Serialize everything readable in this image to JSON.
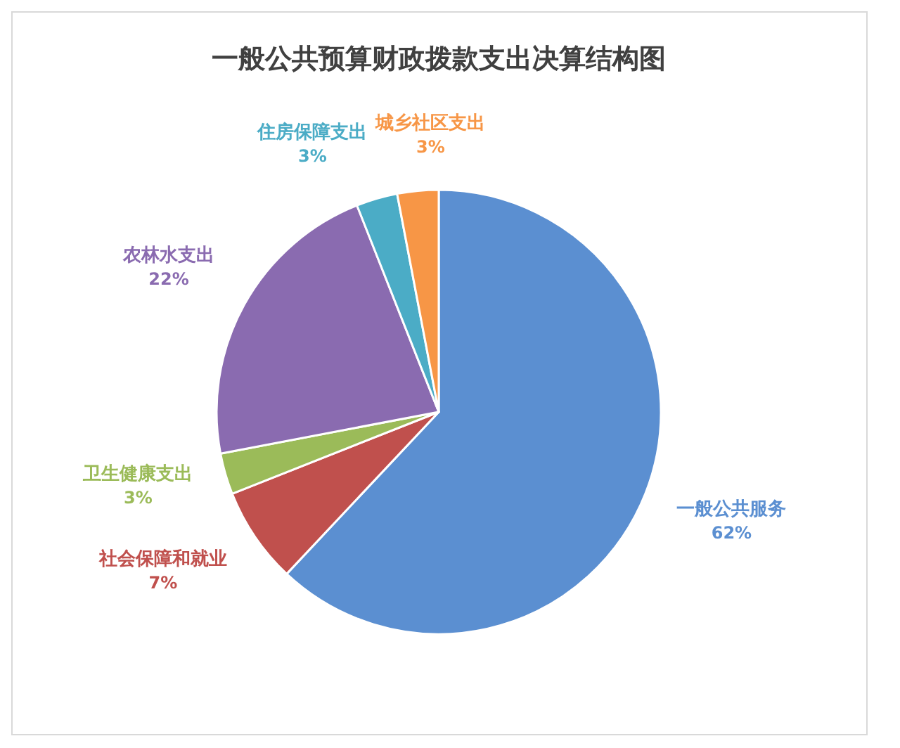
{
  "chart_data": {
    "type": "pie",
    "title": "一般公共预算财政拨款支出决算结构图",
    "categories": [
      "一般公共服务",
      "社会保障和就业",
      "卫生健康支出",
      "农林水支出",
      "住房保障支出",
      "城乡社区支出"
    ],
    "values": [
      62,
      7,
      3,
      22,
      3,
      3
    ],
    "colors": [
      "#5b8fd1",
      "#c0504d",
      "#9bbb59",
      "#8a6bb0",
      "#4bacc6",
      "#f79646"
    ],
    "value_labels": [
      "62%",
      "7%",
      "3%",
      "22%",
      "3%",
      "3%"
    ]
  }
}
